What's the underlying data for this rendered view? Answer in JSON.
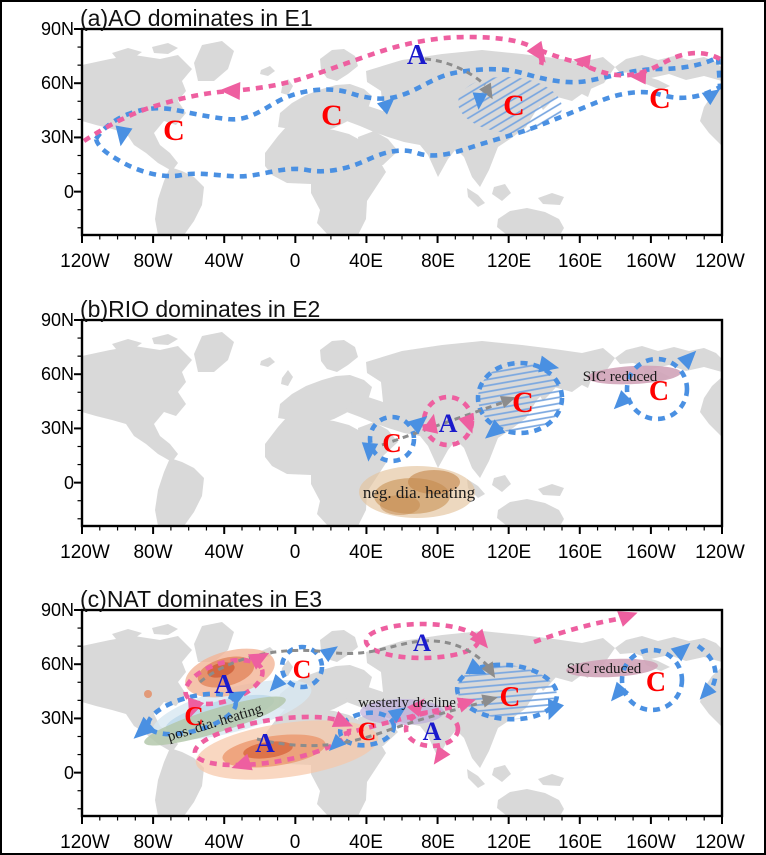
{
  "figure": {
    "type": "three-panel schematic circulation maps",
    "background": "#ffffff",
    "border_color": "#000000"
  },
  "colors": {
    "land_grey": "#d9d9d9",
    "cyclone_blue": "#4a90e2",
    "anticyclone_pink": "#ee5fa0",
    "cyclone_letter_red": "#ff0000",
    "anticyclone_letter_blue": "#1a1acc",
    "wave_arrow_grey": "#8c8c8c",
    "hatch_blue": "#7aa7e0",
    "sic_mauve": "#d0a3b8",
    "neg_heating_brown": "#c3854a",
    "pos_heating_warm": "#e38a60",
    "cold_band_blue": "#bcd8ea",
    "green_band": "#b4c8ab",
    "westerly_purple": "#b9a7d9"
  },
  "axis": {
    "x": [
      "120W",
      "80W",
      "40W",
      "0",
      "40E",
      "80E",
      "120E",
      "160E",
      "160W",
      "120W"
    ],
    "y": [
      "90N",
      "60N",
      "30N",
      "0"
    ]
  },
  "panels": [
    {
      "title": "(a)AO dominates in E1",
      "markers": [
        {
          "t": "C"
        },
        {
          "t": "C"
        },
        {
          "t": "A"
        },
        {
          "t": "C"
        },
        {
          "t": "C"
        }
      ],
      "annotations": []
    },
    {
      "title": "(b)RIO dominates in E2",
      "markers": [
        {
          "t": "C"
        },
        {
          "t": "A"
        },
        {
          "t": "C"
        },
        {
          "t": "C"
        }
      ],
      "annotations": [
        {
          "t": "SIC reduced"
        },
        {
          "t": "neg. dia. heating"
        }
      ]
    },
    {
      "title": "(c)NAT dominates in E3",
      "markers": [
        {
          "t": "A"
        },
        {
          "t": "C"
        },
        {
          "t": "A"
        },
        {
          "t": "C"
        },
        {
          "t": "C"
        },
        {
          "t": "A"
        },
        {
          "t": "C"
        },
        {
          "t": "A"
        },
        {
          "t": "C"
        }
      ],
      "annotations": [
        {
          "t": "SIC reduced"
        },
        {
          "t": "westerly decline"
        },
        {
          "t": "pos. dia. heating"
        }
      ]
    }
  ]
}
